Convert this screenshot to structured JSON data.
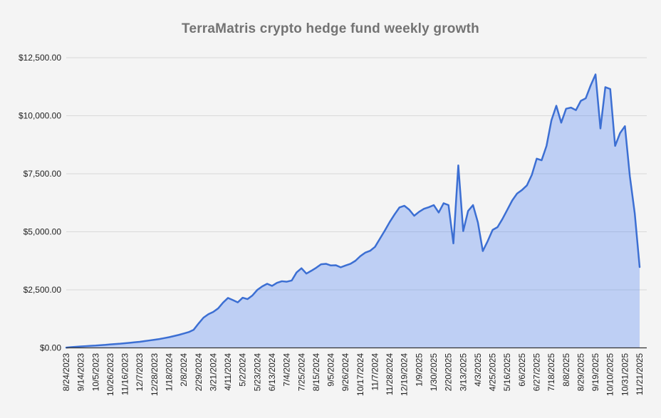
{
  "title": "TerraMatris crypto hedge fund weekly growth",
  "colors": {
    "background": "#f4f4f4",
    "line": "#3c6fd3",
    "fill": "rgba(66,123,244,0.30)",
    "grid": "#d9d9d9",
    "axis": "#333333",
    "title_text": "#737373",
    "label_text": "#222222"
  },
  "chart_data": {
    "type": "area",
    "title": "TerraMatris crypto hedge fund weekly growth",
    "xlabel": "",
    "ylabel": "",
    "legend": "none",
    "grid": "horizontal",
    "ylim": [
      0,
      12500
    ],
    "y_tick_values": [
      0,
      2500,
      5000,
      7500,
      10000,
      12500
    ],
    "y_tick_labels": [
      "$0.00",
      "$2,500.00",
      "$5,000.00",
      "$7,500.00",
      "$10,000.00",
      "$12,500.00"
    ],
    "x_tick_every": 3,
    "x_tick_labels": [
      "8/24/2023",
      "9/14/2023",
      "10/5/2023",
      "10/26/2023",
      "11/16/2023",
      "12/7/2023",
      "12/28/2023",
      "1/18/2024",
      "2/8/2024",
      "2/29/2024",
      "3/21/2024",
      "4/11/2024",
      "5/2/2024",
      "5/23/2024",
      "6/13/2024",
      "7/4/2024",
      "7/25/2024",
      "8/15/2024",
      "9/5/2024",
      "9/26/2024",
      "10/17/2024",
      "11/7/2024",
      "11/28/2024",
      "12/19/2024",
      "1/9/2025",
      "1/30/2025",
      "2/20/2025",
      "3/13/2025",
      "4/3/2025",
      "4/25/2025",
      "5/16/2025",
      "6/6/2025",
      "6/27/2025",
      "7/18/2025",
      "8/8/2025",
      "8/29/2025",
      "9/19/2025",
      "10/10/2025",
      "10/31/2025",
      "11/21/2025"
    ],
    "x": [
      "8/24/2023",
      "8/31/2023",
      "9/7/2023",
      "9/14/2023",
      "9/21/2023",
      "9/28/2023",
      "10/5/2023",
      "10/12/2023",
      "10/19/2023",
      "10/26/2023",
      "11/2/2023",
      "11/9/2023",
      "11/16/2023",
      "11/23/2023",
      "11/30/2023",
      "12/7/2023",
      "12/14/2023",
      "12/21/2023",
      "12/28/2023",
      "1/4/2024",
      "1/11/2024",
      "1/18/2024",
      "1/25/2024",
      "2/1/2024",
      "2/8/2024",
      "2/15/2024",
      "2/22/2024",
      "2/29/2024",
      "3/7/2024",
      "3/14/2024",
      "3/21/2024",
      "3/28/2024",
      "4/4/2024",
      "4/11/2024",
      "4/18/2024",
      "4/25/2024",
      "5/2/2024",
      "5/9/2024",
      "5/16/2024",
      "5/23/2024",
      "5/30/2024",
      "6/6/2024",
      "6/13/2024",
      "6/20/2024",
      "6/27/2024",
      "7/4/2024",
      "7/11/2024",
      "7/18/2024",
      "7/25/2024",
      "8/1/2024",
      "8/8/2024",
      "8/15/2024",
      "8/22/2024",
      "8/29/2024",
      "9/5/2024",
      "9/12/2024",
      "9/19/2024",
      "9/26/2024",
      "10/3/2024",
      "10/10/2024",
      "10/17/2024",
      "10/24/2024",
      "10/31/2024",
      "11/7/2024",
      "11/14/2024",
      "11/21/2024",
      "11/28/2024",
      "12/5/2024",
      "12/12/2024",
      "12/19/2024",
      "12/26/2024",
      "1/2/2025",
      "1/9/2025",
      "1/16/2025",
      "1/23/2025",
      "1/30/2025",
      "2/6/2025",
      "2/13/2025",
      "2/20/2025",
      "2/27/2025",
      "3/6/2025",
      "3/13/2025",
      "3/20/2025",
      "3/27/2025",
      "4/3/2025",
      "4/10/2025",
      "4/17/2025",
      "4/25/2025",
      "5/2/2025",
      "5/9/2025",
      "5/16/2025",
      "5/23/2025",
      "5/30/2025",
      "6/6/2025",
      "6/13/2025",
      "6/20/2025",
      "6/27/2025",
      "7/4/2025",
      "7/11/2025",
      "7/18/2025",
      "7/25/2025",
      "8/1/2025",
      "8/8/2025",
      "8/15/2025",
      "8/22/2025",
      "8/29/2025",
      "9/5/2025",
      "9/12/2025",
      "9/19/2025",
      "9/26/2025",
      "10/3/2025",
      "10/10/2025",
      "10/17/2025",
      "10/24/2025",
      "10/31/2025",
      "11/7/2025",
      "11/14/2025",
      "11/21/2025"
    ],
    "values": [
      10,
      30,
      45,
      60,
      75,
      90,
      100,
      115,
      130,
      150,
      165,
      180,
      200,
      220,
      240,
      260,
      290,
      320,
      350,
      380,
      420,
      460,
      510,
      560,
      620,
      680,
      780,
      1050,
      1300,
      1450,
      1550,
      1700,
      1950,
      2150,
      2060,
      1960,
      2160,
      2100,
      2260,
      2500,
      2650,
      2760,
      2670,
      2800,
      2870,
      2850,
      2900,
      3250,
      3430,
      3200,
      3320,
      3450,
      3600,
      3620,
      3550,
      3560,
      3470,
      3550,
      3620,
      3750,
      3950,
      4100,
      4180,
      4350,
      4700,
      5050,
      5420,
      5750,
      6050,
      6120,
      5950,
      5690,
      5860,
      5990,
      6060,
      6150,
      5830,
      6230,
      6150,
      4500,
      7860,
      5030,
      5900,
      6150,
      5400,
      4170,
      4600,
      5080,
      5200,
      5550,
      5950,
      6350,
      6650,
      6800,
      7000,
      7450,
      8150,
      8080,
      8700,
      9800,
      10430,
      9700,
      10300,
      10350,
      10240,
      10640,
      10750,
      11300,
      11780,
      9450,
      11230,
      11150,
      8700,
      9250,
      9550,
      7400,
      5800,
      3480
    ]
  }
}
